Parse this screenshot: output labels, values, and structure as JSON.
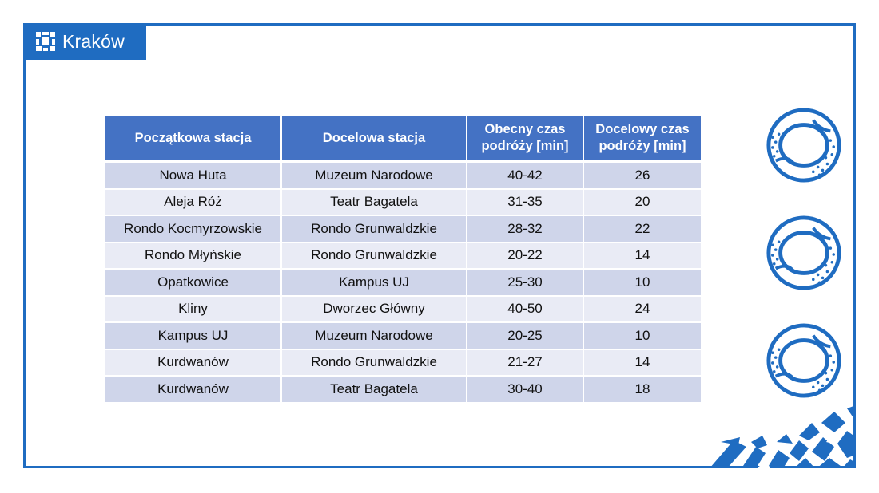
{
  "header": {
    "brand": "Kraków",
    "logo_icon": "krakow-logo-icon",
    "accent_color": "#1f6cc1"
  },
  "table": {
    "header_color": "#4472c4",
    "row_odd_color": "#cfd5ea",
    "row_even_color": "#e9ebf5",
    "columns": [
      "Początkowa stacja",
      "Docelowa stacja",
      "Obecny czas podróży [min]",
      "Docelowy czas podróży [min]"
    ],
    "column_lines": [
      [
        "Początkowa stacja"
      ],
      [
        "Docelowa stacja"
      ],
      [
        "Obecny czas",
        "podróży [min]"
      ],
      [
        "Docelowy czas",
        "podróży [min]"
      ]
    ],
    "rows": [
      [
        "Nowa Huta",
        "Muzeum Narodowe",
        "40-42",
        "26"
      ],
      [
        "Aleja Róż",
        "Teatr Bagatela",
        "31-35",
        "20"
      ],
      [
        "Rondo Kocmyrzowskie",
        "Rondo Grunwaldzkie",
        "28-32",
        "22"
      ],
      [
        "Rondo Młyńskie",
        "Rondo Grunwaldzkie",
        "20-22",
        "14"
      ],
      [
        "Opatkowice",
        "Kampus UJ",
        "25-30",
        "10"
      ],
      [
        "Kliny",
        "Dworzec Główny",
        "40-50",
        "24"
      ],
      [
        "Kampus UJ",
        "Muzeum Narodowe",
        "20-25",
        "10"
      ],
      [
        "Kurdwanów",
        "Rondo Grunwaldzkie",
        "21-27",
        "14"
      ],
      [
        "Kurdwanów",
        "Teatr Bagatela",
        "30-40",
        "18"
      ]
    ]
  },
  "decorations": {
    "circle_icon": "ring-pattern-icon",
    "corner_icon": "mosaic-pattern-icon"
  }
}
